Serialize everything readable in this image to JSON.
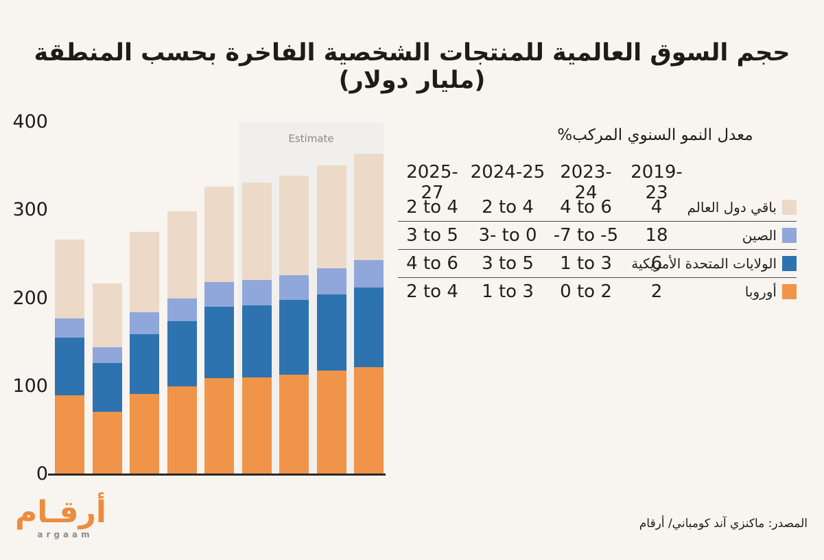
{
  "title": "حجم السوق العالمية للمنتجات الشخصية الفاخرة بحسب المنطقة (مليار دولار)",
  "source": "المصدر: ماكنزي آند كومباني/ أرقام",
  "logo": {
    "arabic": "أرقـام",
    "latin": "argaam"
  },
  "colors": {
    "background": "#f8f4ef",
    "europe": "#ef9449",
    "usa": "#2d73b0",
    "china": "#8fa7da",
    "rest_of_world": "#ecd9c8",
    "estimate_box": "#f0efed",
    "axis": "#2b2825"
  },
  "chart_data": {
    "type": "bar",
    "stacked": true,
    "title": "حجم السوق العالمية للمنتجات الشخصية الفاخرة بحسب المنطقة (مليار دولار)",
    "xlabel": "",
    "ylabel": "",
    "ylim": [
      0,
      400
    ],
    "yticks": [
      0,
      100,
      200,
      300,
      400
    ],
    "grid": false,
    "x_tick_labels_visible": false,
    "categories": [
      "",
      "",
      "",
      "",
      "",
      "",
      "",
      "",
      ""
    ],
    "estimate_label": "Estimate",
    "estimate_start_index": 5,
    "series": [
      {
        "id": "europe",
        "name": "أوروبا",
        "color": "#ef9449",
        "values": [
          90,
          71,
          91,
          100,
          109,
          110,
          113,
          118,
          122
        ]
      },
      {
        "id": "usa",
        "name": "الولايات المتحدة الأمريكية",
        "color": "#2d73b0",
        "values": [
          65,
          55,
          68,
          74,
          81,
          82,
          85,
          86,
          90
        ]
      },
      {
        "id": "china",
        "name": "الصين",
        "color": "#8fa7da",
        "values": [
          22,
          18,
          25,
          26,
          28,
          29,
          28,
          30,
          31
        ]
      },
      {
        "id": "rest-of-world",
        "name": "باقي دول العالم",
        "color": "#ecd9c8",
        "values": [
          90,
          73,
          91,
          99,
          109,
          110,
          113,
          117,
          121
        ]
      }
    ],
    "totals": [
      267,
      217,
      275,
      299,
      327,
      331,
      339,
      351,
      364
    ]
  },
  "table": {
    "title": "معدل النمو السنوي المركب%",
    "columns": [
      "2025-27",
      "2024-25",
      "2023-24",
      "2019-23"
    ],
    "rows": [
      {
        "id": "rest-of-world",
        "label": "باقي دول العالم",
        "color": "#ecd9c8",
        "values": [
          "2 to 4",
          "2 to 4",
          "4 to 6",
          "4"
        ]
      },
      {
        "id": "china",
        "label": "الصين",
        "color": "#8fa7da",
        "values": [
          "3 to 5",
          "3- to 0",
          "-7 to -5",
          "18"
        ]
      },
      {
        "id": "usa",
        "label": "الولايات المتحدة الأمريكية",
        "color": "#2d73b0",
        "values": [
          "4 to 6",
          "3 to 5",
          "1 to 3",
          "6"
        ]
      },
      {
        "id": "europe",
        "label": "أوروبا",
        "color": "#ef9449",
        "values": [
          "2 to 4",
          "1 to 3",
          "0 to 2",
          "2"
        ]
      }
    ]
  }
}
